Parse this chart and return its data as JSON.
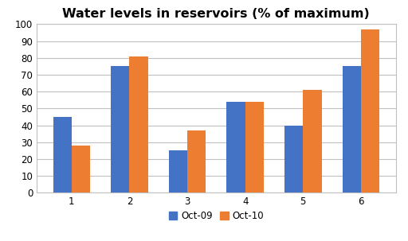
{
  "title": "Water levels in reservoirs (% of maximum)",
  "categories": [
    "1",
    "2",
    "3",
    "4",
    "5",
    "6"
  ],
  "oct09": [
    45,
    75,
    25,
    54,
    40,
    75
  ],
  "oct10": [
    28,
    81,
    37,
    54,
    61,
    97
  ],
  "color_oct09": "#4472C4",
  "color_oct10": "#ED7D31",
  "ylim": [
    0,
    100
  ],
  "yticks": [
    0,
    10,
    20,
    30,
    40,
    50,
    60,
    70,
    80,
    90,
    100
  ],
  "legend_labels": [
    "Oct-09",
    "Oct-10"
  ],
  "bar_width": 0.32,
  "title_fontsize": 11.5,
  "tick_fontsize": 8.5,
  "legend_fontsize": 8.5,
  "background_color": "#FFFFFF",
  "grid_color": "#C0C0C0",
  "spine_color": "#C0C0C0"
}
